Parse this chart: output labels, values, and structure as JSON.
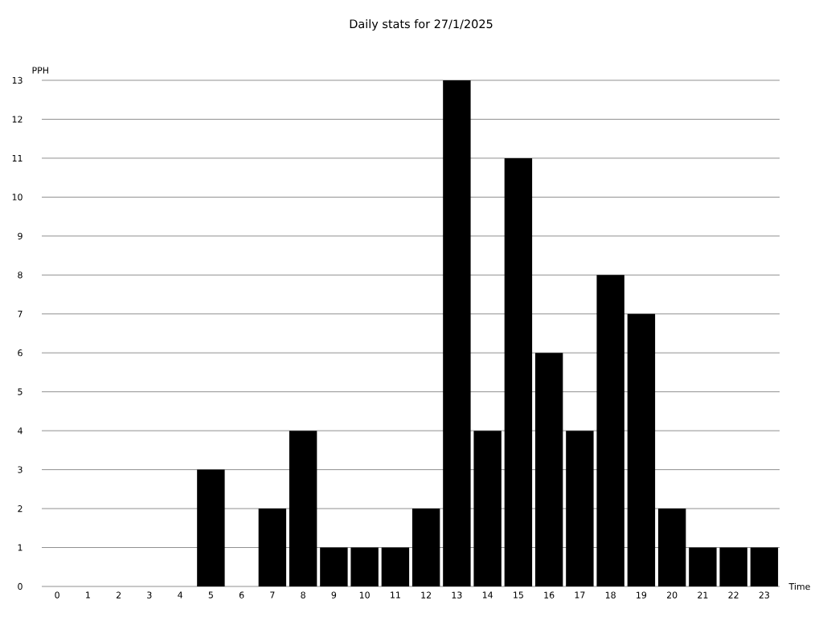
{
  "chart_data": {
    "type": "bar",
    "title": "Daily stats for 27/1/2025",
    "xlabel": "Time",
    "ylabel": "PPH",
    "categories": [
      "0",
      "1",
      "2",
      "3",
      "4",
      "5",
      "6",
      "7",
      "8",
      "9",
      "10",
      "11",
      "12",
      "13",
      "14",
      "15",
      "16",
      "17",
      "18",
      "19",
      "20",
      "21",
      "22",
      "23"
    ],
    "values": [
      0,
      0,
      0,
      0,
      0,
      3,
      0,
      2,
      4,
      1,
      1,
      1,
      2,
      13,
      4,
      11,
      6,
      4,
      8,
      7,
      2,
      1,
      1,
      1
    ],
    "color": "#000000",
    "ylim": [
      0,
      13
    ],
    "yticks": [
      0,
      1,
      2,
      3,
      4,
      5,
      6,
      7,
      8,
      9,
      10,
      11,
      12,
      13
    ],
    "grid": "y"
  }
}
